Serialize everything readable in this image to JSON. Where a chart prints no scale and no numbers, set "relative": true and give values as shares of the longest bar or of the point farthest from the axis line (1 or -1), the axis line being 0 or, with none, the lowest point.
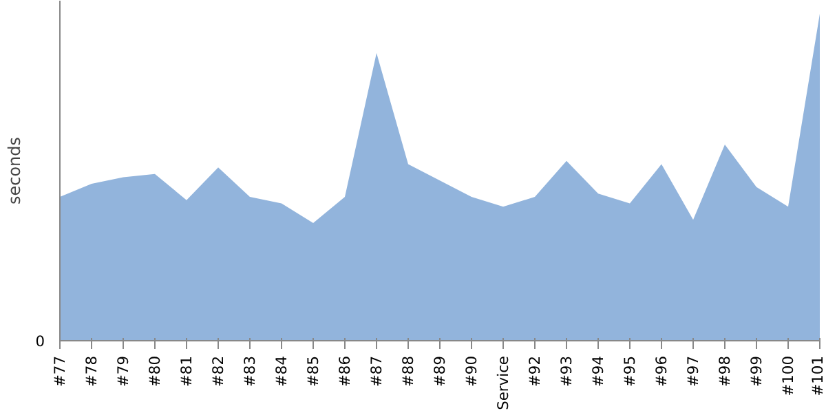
{
  "chart_data": {
    "type": "area",
    "ylabel": "seconds",
    "relative": true,
    "annotations": [
      "0"
    ],
    "grid": false,
    "categories": [
      "#77",
      "#78",
      "#79",
      "#80",
      "#81",
      "#82",
      "#83",
      "#84",
      "#85",
      "#86",
      "#87",
      "#88",
      "#89",
      "#90",
      "Service",
      "#92",
      "#93",
      "#94",
      "#95",
      "#96",
      "#97",
      "#98",
      "#99",
      "#100",
      "#101"
    ],
    "series": [
      {
        "color": "#92b4dc",
        "values": [
          0.44,
          0.48,
          0.5,
          0.51,
          0.43,
          0.53,
          0.44,
          0.42,
          0.36,
          0.44,
          0.88,
          0.54,
          0.49,
          0.44,
          0.41,
          0.44,
          0.55,
          0.45,
          0.42,
          0.54,
          0.37,
          0.6,
          0.47,
          0.41,
          1
        ]
      }
    ]
  }
}
